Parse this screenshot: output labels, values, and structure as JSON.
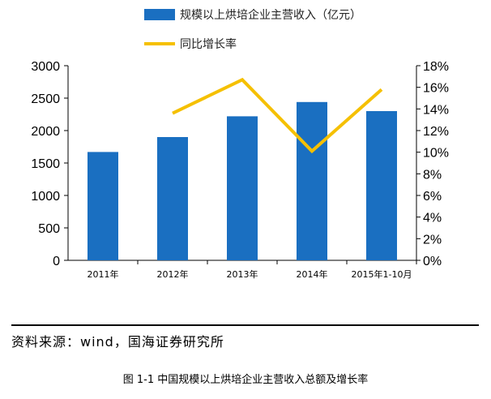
{
  "chart_data": {
    "type": "bar",
    "categories": [
      "2011年",
      "2012年",
      "2013年",
      "2014年",
      "2015年1-10月"
    ],
    "series": [
      {
        "name": "规模以上烘培企业主营收入（亿元）",
        "type": "bar",
        "axis": "left",
        "color": "#1a6fc1",
        "values": [
          1670,
          1900,
          2220,
          2440,
          2300
        ]
      },
      {
        "name": "同比增长率",
        "type": "line",
        "axis": "right",
        "color": "#f5c000",
        "values": [
          null,
          13.6,
          16.7,
          10.1,
          15.8
        ]
      }
    ],
    "y_left": {
      "min": 0,
      "max": 3000,
      "ticks": [
        "0",
        "500",
        "1000",
        "1500",
        "2000",
        "2500",
        "3000"
      ]
    },
    "y_right": {
      "min": 0,
      "max": 18,
      "ticks": [
        "0%",
        "2%",
        "4%",
        "6%",
        "8%",
        "10%",
        "12%",
        "14%",
        "16%",
        "18%"
      ]
    },
    "legend_position": "top-center",
    "grid": false
  },
  "source_text": "资料来源：wind，国海证券研究所",
  "caption": "图 1-1  中国规模以上烘培企业主营收入总额及增长率"
}
